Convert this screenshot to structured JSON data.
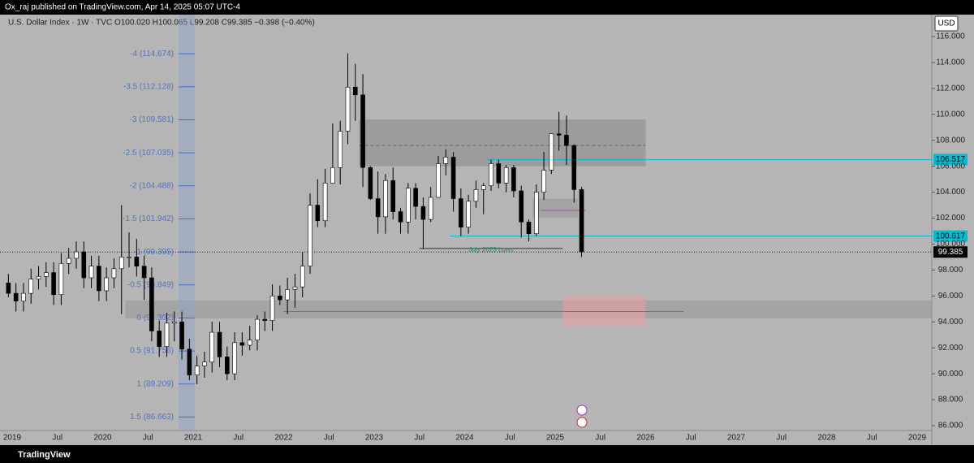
{
  "chart_data": {
    "type": "candlestick",
    "header": "Ox_raj published on TradingView.com, Apr 14, 2025 05:07 UTC-4",
    "legend": "U.S. Dollar Index · 1W · TVC  O100.020 H100.065 L99.208 C99.385 −0.398 (−0.40%)",
    "currency": "USD",
    "brand": "TradingView",
    "x": [
      "2018-12",
      "2019-01",
      "2019-02",
      "2019-03",
      "2019-04",
      "2019-05",
      "2019-06",
      "2019-07",
      "2019-08",
      "2019-09",
      "2019-10",
      "2019-11",
      "2019-12",
      "2020-01",
      "2020-02",
      "2020-03",
      "2020-04",
      "2020-05",
      "2020-06",
      "2020-07",
      "2020-08",
      "2020-09",
      "2020-10",
      "2020-11",
      "2020-12",
      "2021-01",
      "2021-02",
      "2021-03",
      "2021-04",
      "2021-05",
      "2021-06",
      "2021-07",
      "2021-08",
      "2021-09",
      "2021-10",
      "2021-11",
      "2021-12",
      "2022-01",
      "2022-02",
      "2022-03",
      "2022-04",
      "2022-05",
      "2022-06",
      "2022-07",
      "2022-08",
      "2022-09",
      "2022-10",
      "2022-11",
      "2022-12",
      "2023-01",
      "2023-02",
      "2023-03",
      "2023-04",
      "2023-05",
      "2023-06",
      "2023-07",
      "2023-08",
      "2023-09",
      "2023-10",
      "2023-11",
      "2023-12",
      "2024-01",
      "2024-02",
      "2024-03",
      "2024-04",
      "2024-05",
      "2024-06",
      "2024-07",
      "2024-08",
      "2024-09",
      "2024-10",
      "2024-11",
      "2024-12",
      "2025-01",
      "2025-02",
      "2025-03",
      "2025-04"
    ],
    "open": [
      97.0,
      96.2,
      95.6,
      96.2,
      97.3,
      97.5,
      97.8,
      96.1,
      98.5,
      98.9,
      99.4,
      97.4,
      98.3,
      96.4,
      97.4,
      98.1,
      99.0,
      99.0,
      98.3,
      97.4,
      93.3,
      92.1,
      93.9,
      94.0,
      91.9,
      89.9,
      90.6,
      90.9,
      93.2,
      91.3,
      90.0,
      92.4,
      92.2,
      92.6,
      94.2,
      94.1,
      96.0,
      95.7,
      96.5,
      96.7,
      98.3,
      103.0,
      101.8,
      104.7,
      105.9,
      108.7,
      112.1,
      111.5,
      105.9,
      103.5,
      102.1,
      104.9,
      102.5,
      101.7,
      104.3,
      102.9,
      101.9,
      103.6,
      106.2,
      106.7,
      103.5,
      101.3,
      103.3,
      104.2,
      104.5,
      106.2,
      104.7,
      105.9,
      104.1,
      101.7,
      100.8,
      104.0,
      105.7,
      108.5,
      108.4,
      107.6,
      104.2
    ],
    "high": [
      97.7,
      97.0,
      97.0,
      98.1,
      98.3,
      98.6,
      98.6,
      99.3,
      99.7,
      100.2,
      100.2,
      99.1,
      99.1,
      98.2,
      98.9,
      103.0,
      100.9,
      100.4,
      99.1,
      98.2,
      94.1,
      94.7,
      94.8,
      94.8,
      92.7,
      91.4,
      91.7,
      94.0,
      94.0,
      92.1,
      93.2,
      93.2,
      93.7,
      94.5,
      94.8,
      96.9,
      96.8,
      97.4,
      97.7,
      99.4,
      103.9,
      105.0,
      105.8,
      109.3,
      109.5,
      114.7,
      113.9,
      113.1,
      106.0,
      105.6,
      105.4,
      105.9,
      102.8,
      104.7,
      104.7,
      103.6,
      104.4,
      106.8,
      107.3,
      107.1,
      104.3,
      103.8,
      104.9,
      104.7,
      106.5,
      106.5,
      106.1,
      106.1,
      104.5,
      101.9,
      104.6,
      107.1,
      108.5,
      110.2,
      109.9,
      107.7,
      104.4
    ],
    "low": [
      95.9,
      94.8,
      94.8,
      95.4,
      96.5,
      96.7,
      95.3,
      95.3,
      97.7,
      98.1,
      96.6,
      96.6,
      95.6,
      95.6,
      96.6,
      94.6,
      98.2,
      97.5,
      95.7,
      92.5,
      91.3,
      91.3,
      92.5,
      91.1,
      89.5,
      89.2,
      89.7,
      90.1,
      90.5,
      89.5,
      89.5,
      91.4,
      91.8,
      91.8,
      93.3,
      93.3,
      95.3,
      94.6,
      95.1,
      95.9,
      97.7,
      101.3,
      101.3,
      104.7,
      104.6,
      107.7,
      109.5,
      104.4,
      103.4,
      100.8,
      100.8,
      101.9,
      100.8,
      100.8,
      101.9,
      99.6,
      101.7,
      103.6,
      105.3,
      102.5,
      100.6,
      100.8,
      102.8,
      102.3,
      104.1,
      104.3,
      104.0,
      103.6,
      100.5,
      100.2,
      100.6,
      103.4,
      105.4,
      107.2,
      106.1,
      103.2,
      99.0
    ],
    "close": [
      96.2,
      95.6,
      96.2,
      97.3,
      97.5,
      97.8,
      96.1,
      98.5,
      98.9,
      99.4,
      97.4,
      98.3,
      96.4,
      97.4,
      98.1,
      99.0,
      99.0,
      98.3,
      97.4,
      93.3,
      92.1,
      93.9,
      94.0,
      91.9,
      89.9,
      90.6,
      90.9,
      93.2,
      91.3,
      90.0,
      92.4,
      92.2,
      92.6,
      94.2,
      94.1,
      96.0,
      95.7,
      96.5,
      96.7,
      98.3,
      103.0,
      101.8,
      104.7,
      105.9,
      108.7,
      112.1,
      111.5,
      105.9,
      103.5,
      102.1,
      104.9,
      102.5,
      101.7,
      104.3,
      102.9,
      101.9,
      103.6,
      106.2,
      106.7,
      103.5,
      101.3,
      103.3,
      104.2,
      104.5,
      106.2,
      104.7,
      105.9,
      104.1,
      101.7,
      100.8,
      104.0,
      105.7,
      108.5,
      108.4,
      107.6,
      104.2,
      99.4
    ],
    "up_color": "#ffffff",
    "down_color": "#000000",
    "ylim": [
      86,
      116
    ],
    "yticks": [
      {
        "value": 86,
        "label": "86.000"
      },
      {
        "value": 88,
        "label": "88.000"
      },
      {
        "value": 90,
        "label": "90.000"
      },
      {
        "value": 92,
        "label": "92.000"
      },
      {
        "value": 94,
        "label": "94.000"
      },
      {
        "value": 96,
        "label": "96.000"
      },
      {
        "value": 98,
        "label": "98.000"
      },
      {
        "value": 100,
        "label": "100.000"
      },
      {
        "value": 102,
        "label": "102.000"
      },
      {
        "value": 104,
        "label": "104.000"
      },
      {
        "value": 106,
        "label": "106.000"
      },
      {
        "value": 108,
        "label": "108.000"
      },
      {
        "value": 110,
        "label": "110.000"
      },
      {
        "value": 112,
        "label": "112.000"
      },
      {
        "value": 114,
        "label": "114.000"
      },
      {
        "value": 116,
        "label": "116.000"
      }
    ],
    "time_labels": [
      "2019",
      "Jul",
      "2020",
      "Jul",
      "2021",
      "Jul",
      "2022",
      "Jul",
      "2023",
      "Jul",
      "2024",
      "Jul",
      "2025",
      "Jul",
      "2026",
      "Jul",
      "2027",
      "Jul",
      "2028",
      "Jul",
      "2029"
    ],
    "fib_levels": [
      {
        "value": 114.674,
        "label": "-4 (114.674)"
      },
      {
        "value": 112.128,
        "label": "-3.5 (112.128)"
      },
      {
        "value": 109.581,
        "label": "-3 (109.581)"
      },
      {
        "value": 107.035,
        "label": "-2.5 (107.035)"
      },
      {
        "value": 104.488,
        "label": "-2 (104.488)"
      },
      {
        "value": 101.942,
        "label": "-1.5 (101.942)"
      },
      {
        "value": 99.395,
        "label": "-1 (99.395)"
      },
      {
        "value": 96.849,
        "label": "-0.5 (96.849)"
      },
      {
        "value": 94.302,
        "label": "0 (94.302)"
      },
      {
        "value": 91.756,
        "label": "0.5 (91.756)"
      },
      {
        "value": 89.209,
        "label": "1 (89.209)"
      },
      {
        "value": 86.663,
        "label": "1.5 (86.663)"
      }
    ],
    "zones": [
      {
        "from": "2022-11",
        "to": "2026-01",
        "top": 109.6,
        "bottom": 106.0,
        "color": "#8c8c8c"
      },
      {
        "from": "2020-04",
        "to": "2030-01",
        "top": 95.65,
        "bottom": 94.27,
        "color": "#9a9a9a"
      },
      {
        "from": "2024-10",
        "to": "2025-04",
        "top": 103.5,
        "bottom": 102.05,
        "color": "#9a9a9a"
      },
      {
        "from": "2025-02",
        "to": "2026-01",
        "top": 96.0,
        "bottom": 93.65,
        "color": "#e8a0a0"
      }
    ],
    "lines": [
      {
        "price": 106.517,
        "from": "2024-04",
        "color": "#00bcd4"
      },
      {
        "price": 100.617,
        "from": "2023-11",
        "color": "#00bcd4"
      },
      {
        "price": 107.6,
        "from": "2022-11",
        "to": "2026-01",
        "color": "#6a6a6a"
      },
      {
        "price": 94.8,
        "from": "2022-01",
        "to": "2026-06",
        "color": "#3a9a5a"
      },
      {
        "price": 102.6,
        "from": "2024-11",
        "to": "2025-05",
        "color": "#b04aa0"
      }
    ],
    "lows_line": {
      "price": 99.66,
      "from": "2023-07",
      "to": "2025-02",
      "label": "July 2023 Lows"
    },
    "last_price": 99.385
  }
}
